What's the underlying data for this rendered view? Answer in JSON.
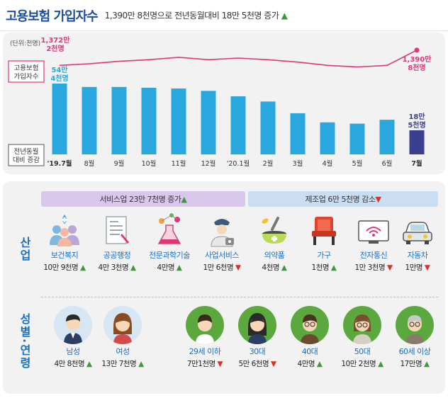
{
  "header": {
    "title": "고용보험 가입자수",
    "subtitle": "1,390만 8천명으로 전년동월대비 18만 5천명 증가",
    "subtitle_arrow": "▲"
  },
  "chart_data": {
    "type": "bar",
    "unit_note": "(단위:천명)",
    "line_label": "고용보험\n가입자수",
    "bar_label": "전년동월\n대비 증감",
    "categories": [
      "'19.7월",
      "8월",
      "9월",
      "10월",
      "11월",
      "12월",
      "'20.1월",
      "2월",
      "3월",
      "4월",
      "5월",
      "6월",
      "7월"
    ],
    "bar_values": [
      544,
      518,
      518,
      512,
      506,
      488,
      446,
      406,
      316,
      246,
      236,
      266,
      185
    ],
    "line_values": [
      13720,
      13740,
      13770,
      13790,
      13820,
      13790,
      13810,
      13790,
      13760,
      13720,
      13700,
      13720,
      13908
    ],
    "first_bar_label": [
      "54만",
      "4천명"
    ],
    "last_bar_label": [
      "18만",
      "5천명"
    ],
    "first_line_label": [
      "1,372만",
      "2천명"
    ],
    "last_line_label": [
      "1,390만",
      "8천명"
    ],
    "colors": {
      "bar": "#29a8e0",
      "last_bar": "#3b3f8f",
      "line": "#e0357a"
    }
  },
  "sectors": {
    "service_banner": "서비스업 23만 7천명 증가",
    "service_arrow": "▲",
    "mfg_banner": "제조업 6만 5천명 감소",
    "mfg_arrow": "▼",
    "side_label": "산업"
  },
  "industry_items": [
    {
      "label": "보건복지",
      "value": "10만 9천명",
      "dir": "▲"
    },
    {
      "label": "공공행정",
      "value": "4만 3천명",
      "dir": "▲"
    },
    {
      "label": "전문과학기술",
      "value": "4만명",
      "dir": "▲"
    },
    {
      "label": "사업서비스",
      "value": "1만 6천명",
      "dir": "▼"
    },
    {
      "label": "의약품",
      "value": "4천명",
      "dir": "▲"
    },
    {
      "label": "가구",
      "value": "1천명",
      "dir": "▲"
    },
    {
      "label": "전자통신",
      "value": "1만 3천명",
      "dir": "▼"
    },
    {
      "label": "자동차",
      "value": "1만명",
      "dir": "▼"
    }
  ],
  "demographics": {
    "side_label": "성별·연령",
    "items": [
      {
        "label": "남성",
        "value": "4만 8천명",
        "dir": "▲"
      },
      {
        "label": "여성",
        "value": "13만 7천명",
        "dir": "▲"
      },
      {
        "label": "29세 이하",
        "value": "7만1천명",
        "dir": "▼"
      },
      {
        "label": "30대",
        "value": "5만 6천명",
        "dir": "▼"
      },
      {
        "label": "40대",
        "value": "4만명",
        "dir": "▲"
      },
      {
        "label": "50대",
        "value": "10만 2천명",
        "dir": "▲"
      },
      {
        "label": "60세 이상",
        "value": "17만명",
        "dir": "▲"
      }
    ]
  }
}
